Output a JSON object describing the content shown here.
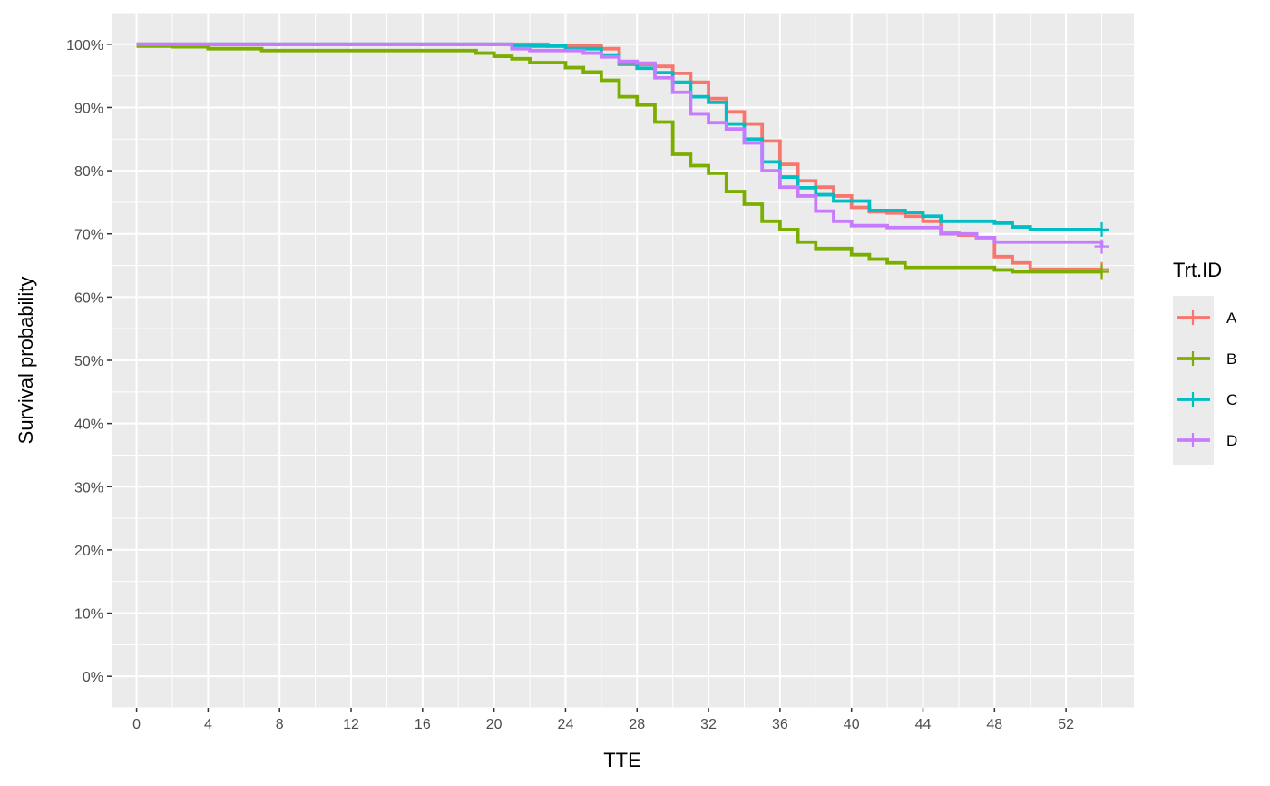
{
  "chart_data": {
    "type": "line",
    "subtype": "step",
    "xlabel": "TTE",
    "ylabel": "Survival probability",
    "xlim": [
      -1.4,
      55.8
    ],
    "ylim": [
      -0.05,
      1.05
    ],
    "x_ticks": [
      0,
      4,
      8,
      12,
      16,
      20,
      24,
      28,
      32,
      36,
      40,
      44,
      48,
      52
    ],
    "x_tick_labels": [
      "0",
      "4",
      "8",
      "12",
      "16",
      "20",
      "24",
      "28",
      "32",
      "36",
      "40",
      "44",
      "48",
      "52"
    ],
    "y_ticks": [
      0,
      0.1,
      0.2,
      0.3,
      0.4,
      0.5,
      0.6,
      0.7,
      0.8,
      0.9,
      1.0
    ],
    "y_tick_labels": [
      "0%",
      "10%",
      "20%",
      "30%",
      "40%",
      "50%",
      "60%",
      "70%",
      "80%",
      "90%",
      "100%"
    ],
    "grid": true,
    "legend": {
      "title": "Trt.ID",
      "position": "right"
    },
    "series": [
      {
        "name": "A",
        "color": "#F8766D",
        "x": [
          0,
          20,
          23,
          26,
          27,
          29,
          30,
          31,
          32,
          33,
          34,
          35,
          36,
          37,
          38,
          39,
          40,
          41,
          42,
          43,
          44,
          45,
          46,
          47,
          48,
          49,
          50,
          54
        ],
        "y": [
          1.0,
          1.0,
          0.997,
          0.993,
          0.968,
          0.965,
          0.954,
          0.94,
          0.914,
          0.893,
          0.874,
          0.847,
          0.81,
          0.784,
          0.774,
          0.76,
          0.742,
          0.735,
          0.733,
          0.728,
          0.72,
          0.701,
          0.698,
          0.694,
          0.664,
          0.654,
          0.644,
          0.644
        ],
        "censor_x": 54,
        "censor_y": 0.644
      },
      {
        "name": "B",
        "color": "#7CAE00",
        "x": [
          0,
          2,
          4,
          7,
          19,
          20,
          21,
          22,
          24,
          25,
          26,
          27,
          28,
          29,
          30,
          31,
          32,
          33,
          34,
          35,
          36,
          37,
          38,
          40,
          41,
          42,
          43,
          48,
          49,
          54
        ],
        "y": [
          0.997,
          0.996,
          0.993,
          0.99,
          0.986,
          0.981,
          0.977,
          0.971,
          0.963,
          0.956,
          0.943,
          0.917,
          0.904,
          0.877,
          0.826,
          0.808,
          0.796,
          0.767,
          0.747,
          0.72,
          0.707,
          0.687,
          0.677,
          0.667,
          0.66,
          0.654,
          0.647,
          0.643,
          0.64,
          0.64
        ],
        "censor_x": 54,
        "censor_y": 0.64
      },
      {
        "name": "C",
        "color": "#00BFC4",
        "x": [
          0,
          19,
          21,
          24,
          26,
          27,
          28,
          29,
          30,
          31,
          32,
          33,
          34,
          35,
          36,
          37,
          38,
          39,
          41,
          43,
          44,
          45,
          48,
          49,
          50,
          54
        ],
        "y": [
          1.0,
          1.0,
          0.997,
          0.993,
          0.983,
          0.97,
          0.962,
          0.955,
          0.94,
          0.917,
          0.908,
          0.874,
          0.85,
          0.814,
          0.79,
          0.773,
          0.762,
          0.752,
          0.737,
          0.734,
          0.728,
          0.72,
          0.717,
          0.711,
          0.707,
          0.707
        ],
        "censor_x": 54,
        "censor_y": 0.707
      },
      {
        "name": "D",
        "color": "#C77CFF",
        "x": [
          0,
          19,
          21,
          22,
          25,
          26,
          27,
          28,
          29,
          30,
          31,
          32,
          33,
          34,
          35,
          36,
          37,
          38,
          39,
          40,
          42,
          45,
          47,
          48,
          54
        ],
        "y": [
          1.0,
          1.0,
          0.993,
          0.99,
          0.986,
          0.98,
          0.973,
          0.97,
          0.947,
          0.924,
          0.89,
          0.876,
          0.866,
          0.844,
          0.8,
          0.774,
          0.76,
          0.736,
          0.72,
          0.713,
          0.71,
          0.7,
          0.694,
          0.687,
          0.68
        ],
        "censor_x": 54,
        "censor_y": 0.68
      }
    ]
  }
}
